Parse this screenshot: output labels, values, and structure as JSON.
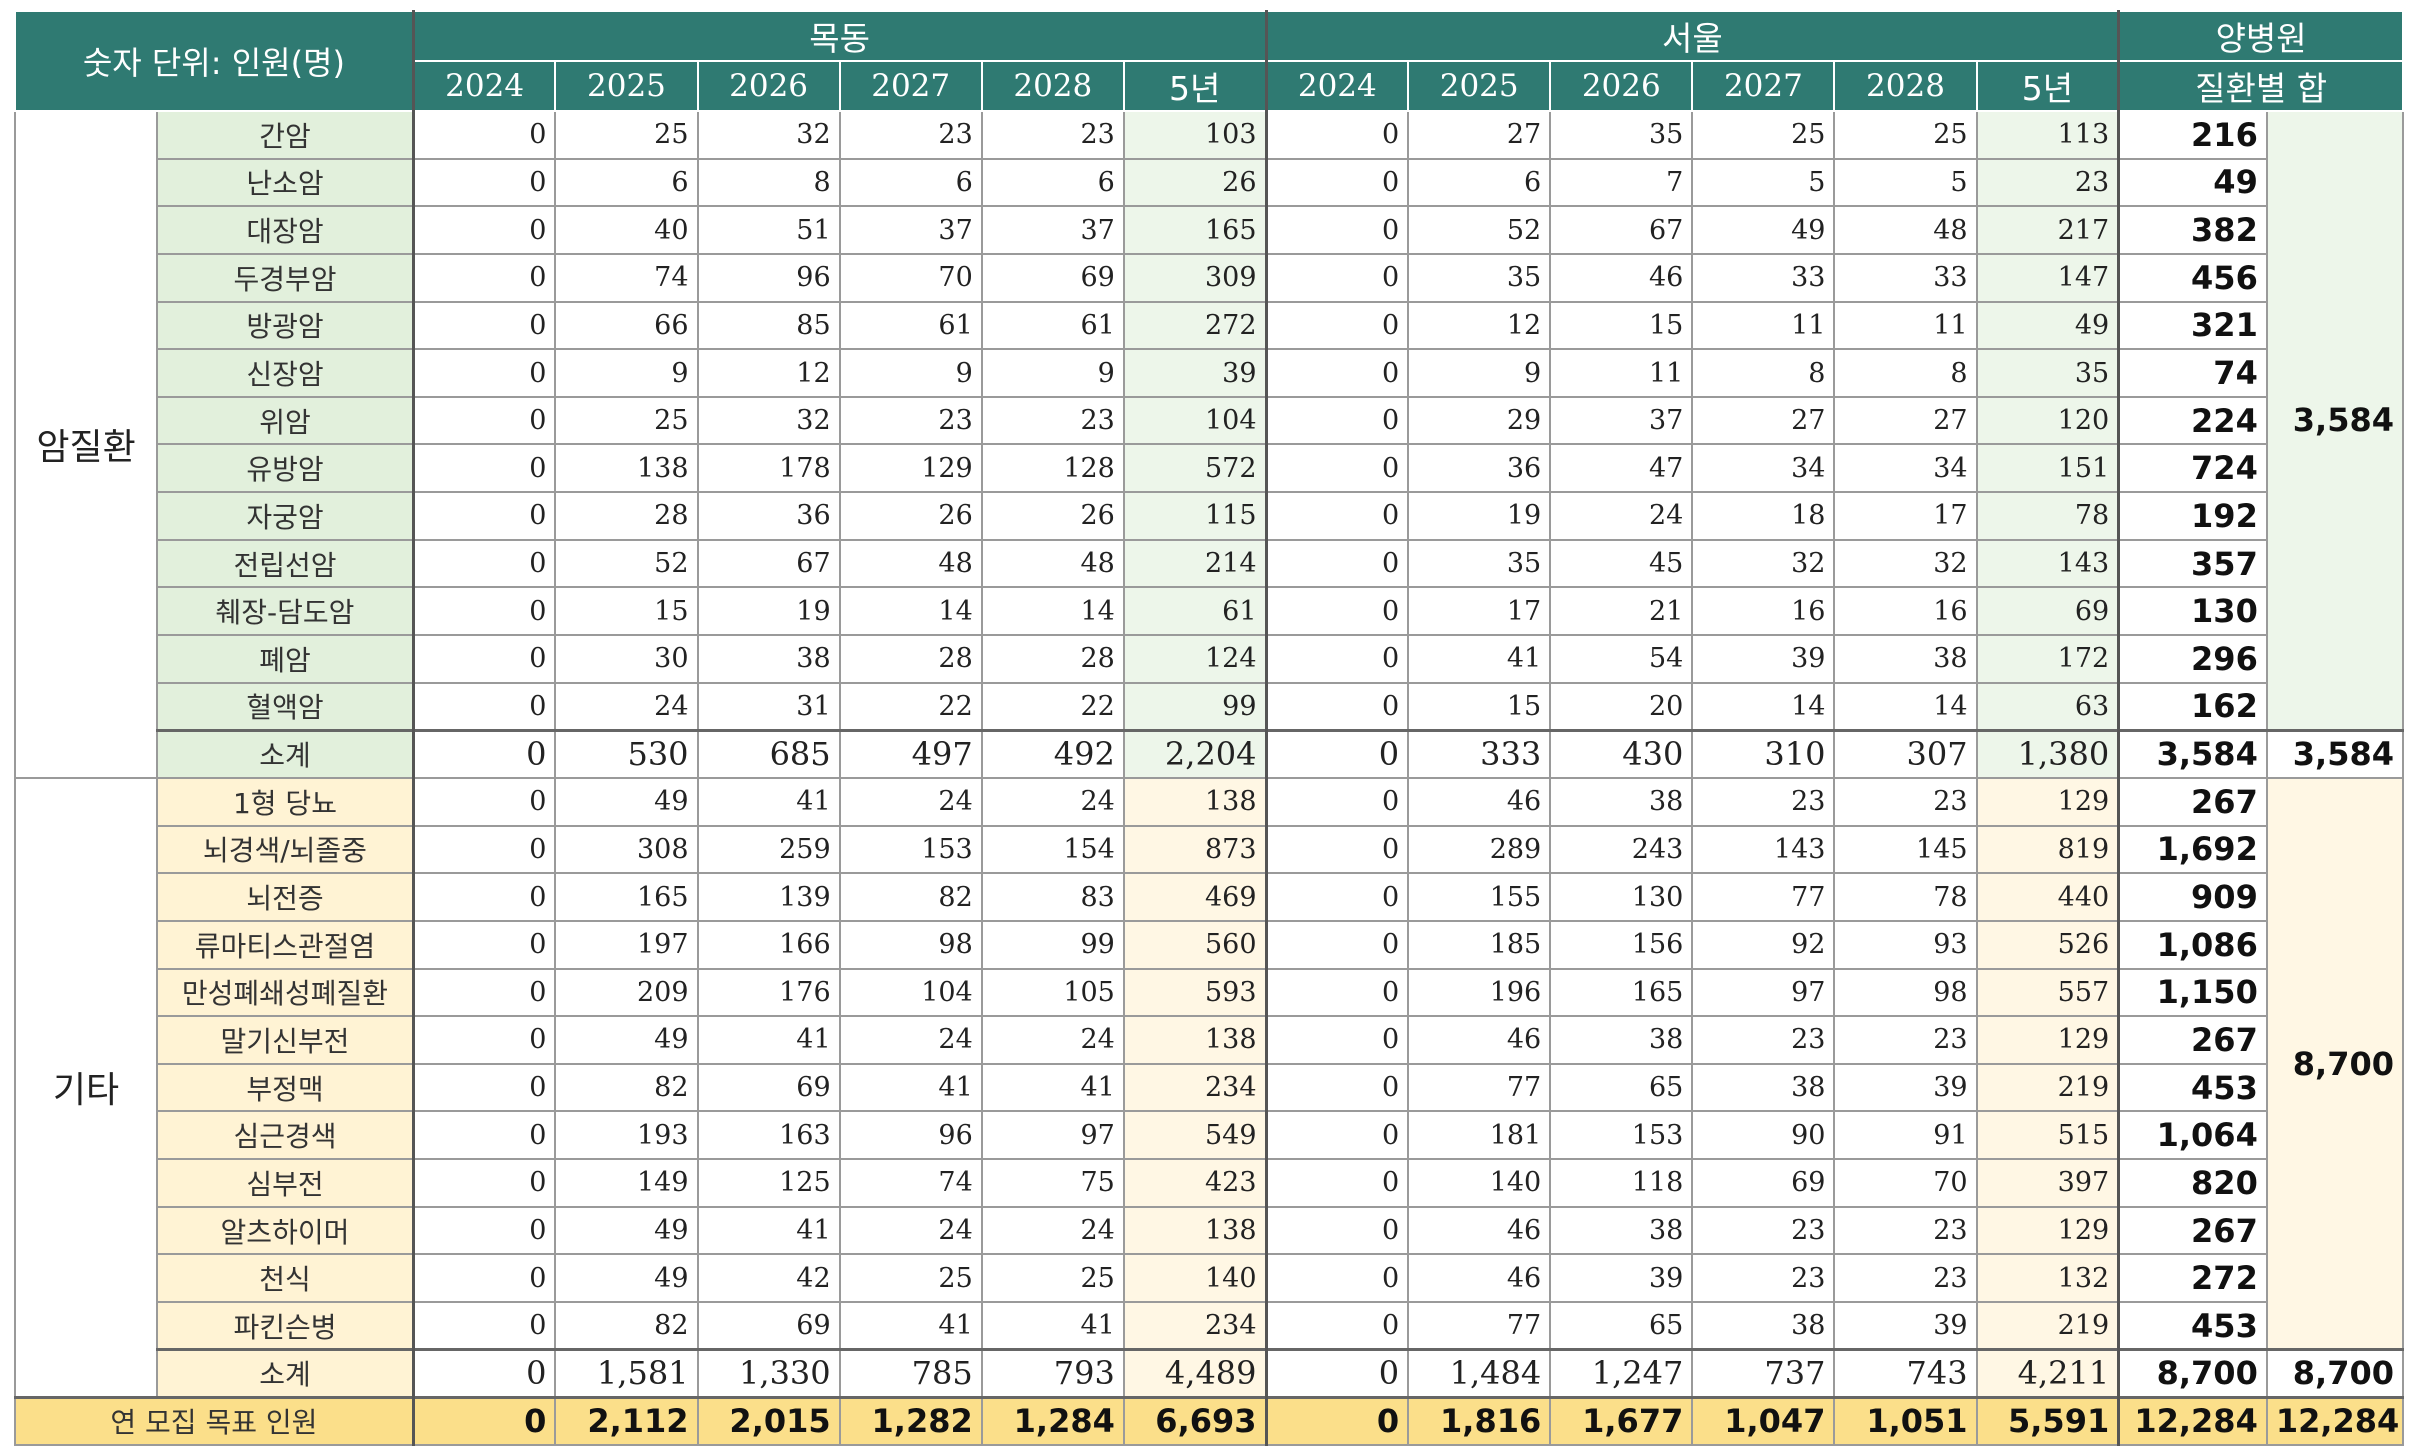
{
  "header": {
    "unit_label": "숫자 단위: 인원(명)",
    "groups": [
      "목동",
      "서울",
      "양병원"
    ],
    "years": [
      "2024",
      "2025",
      "2026",
      "2027",
      "2028",
      "5년"
    ],
    "yang_sub": "질환별 합"
  },
  "categories": [
    {
      "name": "암질환",
      "group_total": "3,584",
      "rows": [
        {
          "name": "간암",
          "mokdong": [
            "0",
            "25",
            "32",
            "23",
            "23",
            "103"
          ],
          "seoul": [
            "0",
            "27",
            "35",
            "25",
            "25",
            "113"
          ],
          "sum": "216"
        },
        {
          "name": "난소암",
          "mokdong": [
            "0",
            "6",
            "8",
            "6",
            "6",
            "26"
          ],
          "seoul": [
            "0",
            "6",
            "7",
            "5",
            "5",
            "23"
          ],
          "sum": "49"
        },
        {
          "name": "대장암",
          "mokdong": [
            "0",
            "40",
            "51",
            "37",
            "37",
            "165"
          ],
          "seoul": [
            "0",
            "52",
            "67",
            "49",
            "48",
            "217"
          ],
          "sum": "382"
        },
        {
          "name": "두경부암",
          "mokdong": [
            "0",
            "74",
            "96",
            "70",
            "69",
            "309"
          ],
          "seoul": [
            "0",
            "35",
            "46",
            "33",
            "33",
            "147"
          ],
          "sum": "456"
        },
        {
          "name": "방광암",
          "mokdong": [
            "0",
            "66",
            "85",
            "61",
            "61",
            "272"
          ],
          "seoul": [
            "0",
            "12",
            "15",
            "11",
            "11",
            "49"
          ],
          "sum": "321"
        },
        {
          "name": "신장암",
          "mokdong": [
            "0",
            "9",
            "12",
            "9",
            "9",
            "39"
          ],
          "seoul": [
            "0",
            "9",
            "11",
            "8",
            "8",
            "35"
          ],
          "sum": "74"
        },
        {
          "name": "위암",
          "mokdong": [
            "0",
            "25",
            "32",
            "23",
            "23",
            "104"
          ],
          "seoul": [
            "0",
            "29",
            "37",
            "27",
            "27",
            "120"
          ],
          "sum": "224"
        },
        {
          "name": "유방암",
          "mokdong": [
            "0",
            "138",
            "178",
            "129",
            "128",
            "572"
          ],
          "seoul": [
            "0",
            "36",
            "47",
            "34",
            "34",
            "151"
          ],
          "sum": "724"
        },
        {
          "name": "자궁암",
          "mokdong": [
            "0",
            "28",
            "36",
            "26",
            "26",
            "115"
          ],
          "seoul": [
            "0",
            "19",
            "24",
            "18",
            "17",
            "78"
          ],
          "sum": "192"
        },
        {
          "name": "전립선암",
          "mokdong": [
            "0",
            "52",
            "67",
            "48",
            "48",
            "214"
          ],
          "seoul": [
            "0",
            "35",
            "45",
            "32",
            "32",
            "143"
          ],
          "sum": "357"
        },
        {
          "name": "췌장-담도암",
          "mokdong": [
            "0",
            "15",
            "19",
            "14",
            "14",
            "61"
          ],
          "seoul": [
            "0",
            "17",
            "21",
            "16",
            "16",
            "69"
          ],
          "sum": "130"
        },
        {
          "name": "폐암",
          "mokdong": [
            "0",
            "30",
            "38",
            "28",
            "28",
            "124"
          ],
          "seoul": [
            "0",
            "41",
            "54",
            "39",
            "38",
            "172"
          ],
          "sum": "296"
        },
        {
          "name": "혈액암",
          "mokdong": [
            "0",
            "24",
            "31",
            "22",
            "22",
            "99"
          ],
          "seoul": [
            "0",
            "15",
            "20",
            "14",
            "14",
            "63"
          ],
          "sum": "162"
        }
      ],
      "subtotal": {
        "name": "소계",
        "mokdong": [
          "0",
          "530",
          "685",
          "497",
          "492",
          "2,204"
        ],
        "seoul": [
          "0",
          "333",
          "430",
          "310",
          "307",
          "1,380"
        ],
        "sum": "3,584",
        "group": "3,584"
      }
    },
    {
      "name": "기타",
      "group_total": "8,700",
      "rows": [
        {
          "name": "1형 당뇨",
          "mokdong": [
            "0",
            "49",
            "41",
            "24",
            "24",
            "138"
          ],
          "seoul": [
            "0",
            "46",
            "38",
            "23",
            "23",
            "129"
          ],
          "sum": "267"
        },
        {
          "name": "뇌경색/뇌졸중",
          "mokdong": [
            "0",
            "308",
            "259",
            "153",
            "154",
            "873"
          ],
          "seoul": [
            "0",
            "289",
            "243",
            "143",
            "145",
            "819"
          ],
          "sum": "1,692"
        },
        {
          "name": "뇌전증",
          "mokdong": [
            "0",
            "165",
            "139",
            "82",
            "83",
            "469"
          ],
          "seoul": [
            "0",
            "155",
            "130",
            "77",
            "78",
            "440"
          ],
          "sum": "909"
        },
        {
          "name": "류마티스관절염",
          "mokdong": [
            "0",
            "197",
            "166",
            "98",
            "99",
            "560"
          ],
          "seoul": [
            "0",
            "185",
            "156",
            "92",
            "93",
            "526"
          ],
          "sum": "1,086"
        },
        {
          "name": "만성폐쇄성폐질환",
          "mokdong": [
            "0",
            "209",
            "176",
            "104",
            "105",
            "593"
          ],
          "seoul": [
            "0",
            "196",
            "165",
            "97",
            "98",
            "557"
          ],
          "sum": "1,150"
        },
        {
          "name": "말기신부전",
          "mokdong": [
            "0",
            "49",
            "41",
            "24",
            "24",
            "138"
          ],
          "seoul": [
            "0",
            "46",
            "38",
            "23",
            "23",
            "129"
          ],
          "sum": "267"
        },
        {
          "name": "부정맥",
          "mokdong": [
            "0",
            "82",
            "69",
            "41",
            "41",
            "234"
          ],
          "seoul": [
            "0",
            "77",
            "65",
            "38",
            "39",
            "219"
          ],
          "sum": "453"
        },
        {
          "name": "심근경색",
          "mokdong": [
            "0",
            "193",
            "163",
            "96",
            "97",
            "549"
          ],
          "seoul": [
            "0",
            "181",
            "153",
            "90",
            "91",
            "515"
          ],
          "sum": "1,064"
        },
        {
          "name": "심부전",
          "mokdong": [
            "0",
            "149",
            "125",
            "74",
            "75",
            "423"
          ],
          "seoul": [
            "0",
            "140",
            "118",
            "69",
            "70",
            "397"
          ],
          "sum": "820"
        },
        {
          "name": "알츠하이머",
          "mokdong": [
            "0",
            "49",
            "41",
            "24",
            "24",
            "138"
          ],
          "seoul": [
            "0",
            "46",
            "38",
            "23",
            "23",
            "129"
          ],
          "sum": "267"
        },
        {
          "name": "천식",
          "mokdong": [
            "0",
            "49",
            "42",
            "25",
            "25",
            "140"
          ],
          "seoul": [
            "0",
            "46",
            "39",
            "23",
            "23",
            "132"
          ],
          "sum": "272"
        },
        {
          "name": "파킨슨병",
          "mokdong": [
            "0",
            "82",
            "69",
            "41",
            "41",
            "234"
          ],
          "seoul": [
            "0",
            "77",
            "65",
            "38",
            "39",
            "219"
          ],
          "sum": "453"
        }
      ],
      "subtotal": {
        "name": "소계",
        "mokdong": [
          "0",
          "1,581",
          "1,330",
          "785",
          "793",
          "4,489"
        ],
        "seoul": [
          "0",
          "1,484",
          "1,247",
          "737",
          "743",
          "4,211"
        ],
        "sum": "8,700",
        "group": "8,700"
      }
    }
  ],
  "total": {
    "label": "연 모집 목표 인원",
    "mokdong": [
      "0",
      "2,112",
      "2,015",
      "1,282",
      "1,284",
      "6,693"
    ],
    "seoul": [
      "0",
      "1,816",
      "1,677",
      "1,047",
      "1,051",
      "5,591"
    ],
    "sum": "12,284",
    "group": "12,284"
  }
}
